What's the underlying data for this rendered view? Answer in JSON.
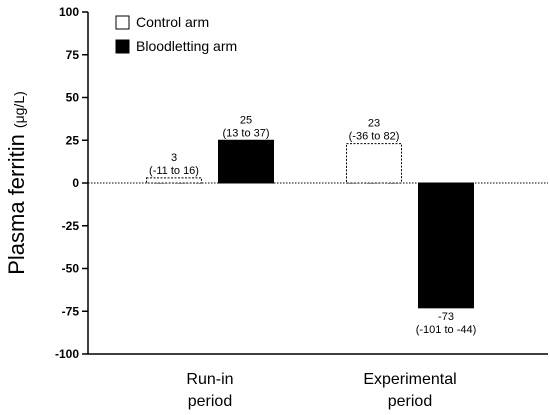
{
  "chart_data": {
    "type": "bar",
    "title": "",
    "xlabel": "",
    "ylabel": "Plasma ferritin",
    "ylabel_unit": "(μg/L)",
    "ylim": [
      -100,
      100
    ],
    "yticks": [
      100,
      75,
      50,
      25,
      0,
      -25,
      -50,
      -75,
      -100
    ],
    "grid": false,
    "zero_line": "dotted",
    "legend_placement": "top-left",
    "categories": [
      [
        "Run-in",
        "period"
      ],
      [
        "Experimental",
        "period"
      ]
    ],
    "series": [
      {
        "name": "Control arm",
        "fill": "#ffffff",
        "stroke": "#000000",
        "dashed": true,
        "values": [
          3,
          23
        ],
        "value_labels": [
          "3",
          "23"
        ],
        "ci_labels": [
          "(-11 to 16)",
          "(-36 to 82)"
        ]
      },
      {
        "name": "Bloodletting arm",
        "fill": "#000000",
        "stroke": "#000000",
        "dashed": false,
        "values": [
          25,
          -73
        ],
        "value_labels": [
          "25",
          "-73"
        ],
        "ci_labels": [
          "(13 to 37)",
          "(-101 to -44)"
        ]
      }
    ]
  }
}
